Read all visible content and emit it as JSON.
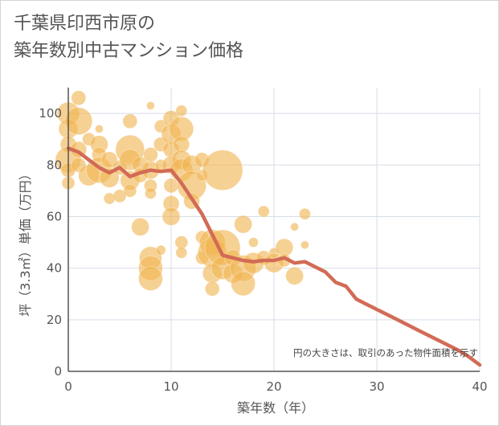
{
  "chart_data": {
    "type": "scatter",
    "title_line1": "千葉県印西市原の",
    "title_line2": "築年数別中古マンション価格",
    "xlabel": "築年数（年）",
    "ylabel": "坪（3.3㎡）単価（万円）",
    "note": "円の大きさは、取引のあった物件面積を示す",
    "xlim": [
      0,
      40
    ],
    "ylim": [
      0,
      110
    ],
    "xticks": [
      "0",
      "10",
      "20",
      "30",
      "40"
    ],
    "yticks": [
      "0",
      "20",
      "40",
      "60",
      "80",
      "100"
    ],
    "grid": true,
    "colors": {
      "bubble": "#f0b452",
      "line": "#d26b55",
      "grid": "#d8dde6",
      "axis": "#555555"
    },
    "bubbles": [
      {
        "x": 0,
        "y": 100,
        "s": 14
      },
      {
        "x": 0,
        "y": 94,
        "s": 12
      },
      {
        "x": 0,
        "y": 88,
        "s": 10
      },
      {
        "x": 0,
        "y": 82,
        "s": 16
      },
      {
        "x": 0,
        "y": 78,
        "s": 9
      },
      {
        "x": 0,
        "y": 73,
        "s": 8
      },
      {
        "x": 1,
        "y": 106,
        "s": 9
      },
      {
        "x": 1,
        "y": 97,
        "s": 17
      },
      {
        "x": 1,
        "y": 86,
        "s": 10
      },
      {
        "x": 1,
        "y": 80,
        "s": 9
      },
      {
        "x": 2,
        "y": 90,
        "s": 8
      },
      {
        "x": 2,
        "y": 76,
        "s": 13
      },
      {
        "x": 3,
        "y": 88,
        "s": 11
      },
      {
        "x": 3,
        "y": 84,
        "s": 9
      },
      {
        "x": 3,
        "y": 78,
        "s": 16
      },
      {
        "x": 3,
        "y": 94,
        "s": 5
      },
      {
        "x": 4,
        "y": 82,
        "s": 10
      },
      {
        "x": 4,
        "y": 75,
        "s": 12
      },
      {
        "x": 4,
        "y": 67,
        "s": 7
      },
      {
        "x": 5,
        "y": 79,
        "s": 9
      },
      {
        "x": 5,
        "y": 68,
        "s": 8
      },
      {
        "x": 6,
        "y": 97,
        "s": 9
      },
      {
        "x": 6,
        "y": 86,
        "s": 18
      },
      {
        "x": 6,
        "y": 82,
        "s": 13
      },
      {
        "x": 6,
        "y": 74,
        "s": 12
      },
      {
        "x": 6,
        "y": 70,
        "s": 8
      },
      {
        "x": 7,
        "y": 80,
        "s": 10
      },
      {
        "x": 7,
        "y": 76,
        "s": 9
      },
      {
        "x": 7,
        "y": 56,
        "s": 11
      },
      {
        "x": 8,
        "y": 103,
        "s": 5
      },
      {
        "x": 8,
        "y": 84,
        "s": 9
      },
      {
        "x": 8,
        "y": 78,
        "s": 11
      },
      {
        "x": 8,
        "y": 72,
        "s": 8
      },
      {
        "x": 8,
        "y": 69,
        "s": 7
      },
      {
        "x": 8,
        "y": 44,
        "s": 14
      },
      {
        "x": 8,
        "y": 40,
        "s": 15
      },
      {
        "x": 8,
        "y": 36,
        "s": 15
      },
      {
        "x": 9,
        "y": 95,
        "s": 8
      },
      {
        "x": 9,
        "y": 88,
        "s": 9
      },
      {
        "x": 9,
        "y": 80,
        "s": 7
      },
      {
        "x": 9,
        "y": 47,
        "s": 6
      },
      {
        "x": 10,
        "y": 98,
        "s": 10
      },
      {
        "x": 10,
        "y": 92,
        "s": 12
      },
      {
        "x": 10,
        "y": 86,
        "s": 10
      },
      {
        "x": 10,
        "y": 80,
        "s": 11
      },
      {
        "x": 10,
        "y": 72,
        "s": 9
      },
      {
        "x": 10,
        "y": 65,
        "s": 10
      },
      {
        "x": 10,
        "y": 60,
        "s": 11
      },
      {
        "x": 11,
        "y": 101,
        "s": 7
      },
      {
        "x": 11,
        "y": 94,
        "s": 15
      },
      {
        "x": 11,
        "y": 88,
        "s": 10
      },
      {
        "x": 11,
        "y": 82,
        "s": 12
      },
      {
        "x": 11,
        "y": 78,
        "s": 14
      },
      {
        "x": 11,
        "y": 50,
        "s": 8
      },
      {
        "x": 11,
        "y": 46,
        "s": 7
      },
      {
        "x": 12,
        "y": 80,
        "s": 12
      },
      {
        "x": 12,
        "y": 72,
        "s": 18
      },
      {
        "x": 12,
        "y": 66,
        "s": 10
      },
      {
        "x": 13,
        "y": 82,
        "s": 9
      },
      {
        "x": 13,
        "y": 76,
        "s": 7
      },
      {
        "x": 13,
        "y": 52,
        "s": 8
      },
      {
        "x": 13,
        "y": 44,
        "s": 8
      },
      {
        "x": 14,
        "y": 50,
        "s": 16
      },
      {
        "x": 14,
        "y": 46,
        "s": 18
      },
      {
        "x": 14,
        "y": 38,
        "s": 12
      },
      {
        "x": 14,
        "y": 32,
        "s": 9
      },
      {
        "x": 15,
        "y": 78,
        "s": 25
      },
      {
        "x": 15,
        "y": 48,
        "s": 22
      },
      {
        "x": 15,
        "y": 40,
        "s": 14
      },
      {
        "x": 16,
        "y": 44,
        "s": 10
      },
      {
        "x": 16,
        "y": 38,
        "s": 12
      },
      {
        "x": 17,
        "y": 57,
        "s": 11
      },
      {
        "x": 17,
        "y": 40,
        "s": 16
      },
      {
        "x": 17,
        "y": 34,
        "s": 15
      },
      {
        "x": 18,
        "y": 50,
        "s": 6
      },
      {
        "x": 18,
        "y": 42,
        "s": 13
      },
      {
        "x": 19,
        "y": 62,
        "s": 7
      },
      {
        "x": 19,
        "y": 44,
        "s": 9
      },
      {
        "x": 20,
        "y": 46,
        "s": 6
      },
      {
        "x": 20,
        "y": 42,
        "s": 12
      },
      {
        "x": 21,
        "y": 48,
        "s": 11
      },
      {
        "x": 21,
        "y": 43,
        "s": 8
      },
      {
        "x": 22,
        "y": 56,
        "s": 5
      },
      {
        "x": 22,
        "y": 37,
        "s": 11
      },
      {
        "x": 23,
        "y": 61,
        "s": 7
      },
      {
        "x": 23,
        "y": 49,
        "s": 5
      }
    ],
    "series": [
      {
        "x": [
          0,
          1,
          2,
          3,
          4,
          5,
          6,
          7,
          8,
          9,
          10,
          11,
          12,
          13,
          14,
          15,
          16,
          17,
          18,
          19,
          20,
          21,
          22,
          23,
          24,
          25,
          26,
          27,
          28,
          29,
          30,
          31,
          32,
          33,
          34,
          35,
          36,
          37,
          38,
          39,
          40
        ],
        "y": [
          86.5,
          85,
          82,
          79,
          77,
          79,
          75.5,
          77,
          78,
          77.5,
          78,
          73,
          67,
          61,
          53,
          45,
          44,
          43,
          42.5,
          43,
          43,
          44,
          42,
          42.5,
          40.5,
          38.5,
          34.5,
          33,
          28,
          26,
          24,
          22,
          20,
          18,
          16,
          14,
          12,
          10,
          8,
          5.5,
          2.5
        ]
      }
    ]
  }
}
